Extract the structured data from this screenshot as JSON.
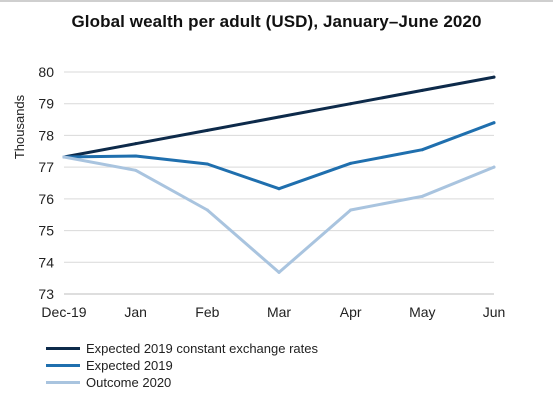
{
  "title": "Global wealth per adult (USD), January–June 2020",
  "chart_data": {
    "type": "line",
    "title": "Global wealth per adult (USD), January–June 2020",
    "xlabel": "",
    "ylabel": "Thousands",
    "categories": [
      "Dec-19",
      "Jan",
      "Feb",
      "Mar",
      "Apr",
      "May",
      "Jun"
    ],
    "ylim": [
      73,
      80
    ],
    "yticks": [
      73,
      74,
      75,
      76,
      77,
      78,
      79,
      80
    ],
    "grid": true,
    "legend_position": "bottom",
    "series": [
      {
        "name": "Expected 2019 constant exchange rates",
        "color": "#0d2a4a",
        "values": [
          77.32,
          77.74,
          78.16,
          78.58,
          79.0,
          79.42,
          79.84
        ]
      },
      {
        "name": "Expected 2019",
        "color": "#1f6fae",
        "values": [
          77.32,
          77.35,
          77.1,
          76.32,
          77.12,
          77.55,
          78.4
        ]
      },
      {
        "name": "Outcome 2020",
        "color": "#a9c4df",
        "values": [
          77.32,
          76.9,
          75.65,
          73.68,
          75.65,
          76.08,
          77.0
        ]
      }
    ]
  }
}
